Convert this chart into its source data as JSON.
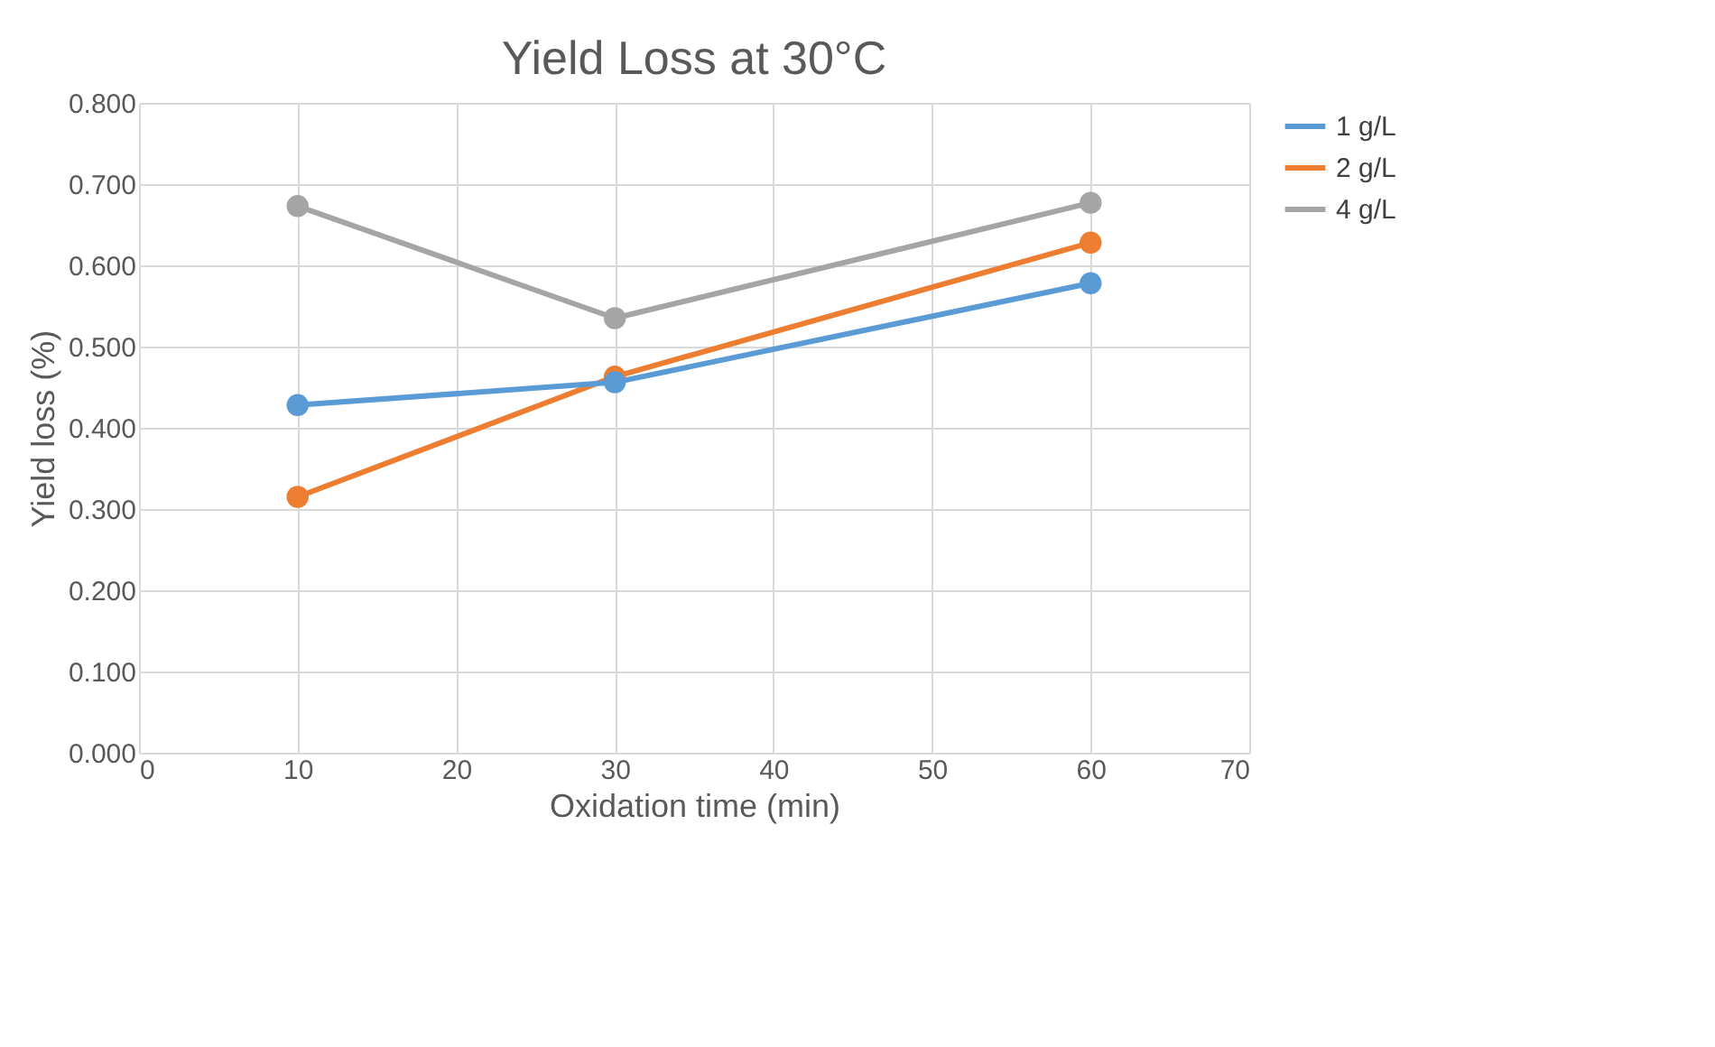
{
  "chart_data": {
    "type": "line",
    "title": "Yield Loss at 30°C",
    "xlabel": "Oxidation time (min)",
    "ylabel": "Yield  loss (%)",
    "x": [
      10,
      30,
      60
    ],
    "series": [
      {
        "name": "1 g/L",
        "color": "#5b9bd5",
        "values": [
          0.428,
          0.456,
          0.578
        ]
      },
      {
        "name": "2 g/L",
        "color": "#ed7d31",
        "values": [
          0.315,
          0.463,
          0.628
        ]
      },
      {
        "name": "4 g/L",
        "color": "#a5a5a5",
        "values": [
          0.673,
          0.535,
          0.677
        ]
      }
    ],
    "xlim": [
      0,
      70
    ],
    "xticks": [
      0,
      10,
      20,
      30,
      40,
      50,
      60,
      70
    ],
    "ylim": [
      0,
      0.8
    ],
    "yticks": [
      {
        "value": 0,
        "label": "0.000"
      },
      {
        "value": 0.1,
        "label": "0.100"
      },
      {
        "value": 0.2,
        "label": "0.200"
      },
      {
        "value": 0.3,
        "label": "0.300"
      },
      {
        "value": 0.4,
        "label": "0.400"
      },
      {
        "value": 0.5,
        "label": "0.500"
      },
      {
        "value": 0.6,
        "label": "0.600"
      },
      {
        "value": 0.7,
        "label": "0.700"
      },
      {
        "value": 0.8,
        "label": "0.800"
      }
    ],
    "grid": true,
    "legend": "right",
    "marker": "circle",
    "line_style": "solid"
  }
}
